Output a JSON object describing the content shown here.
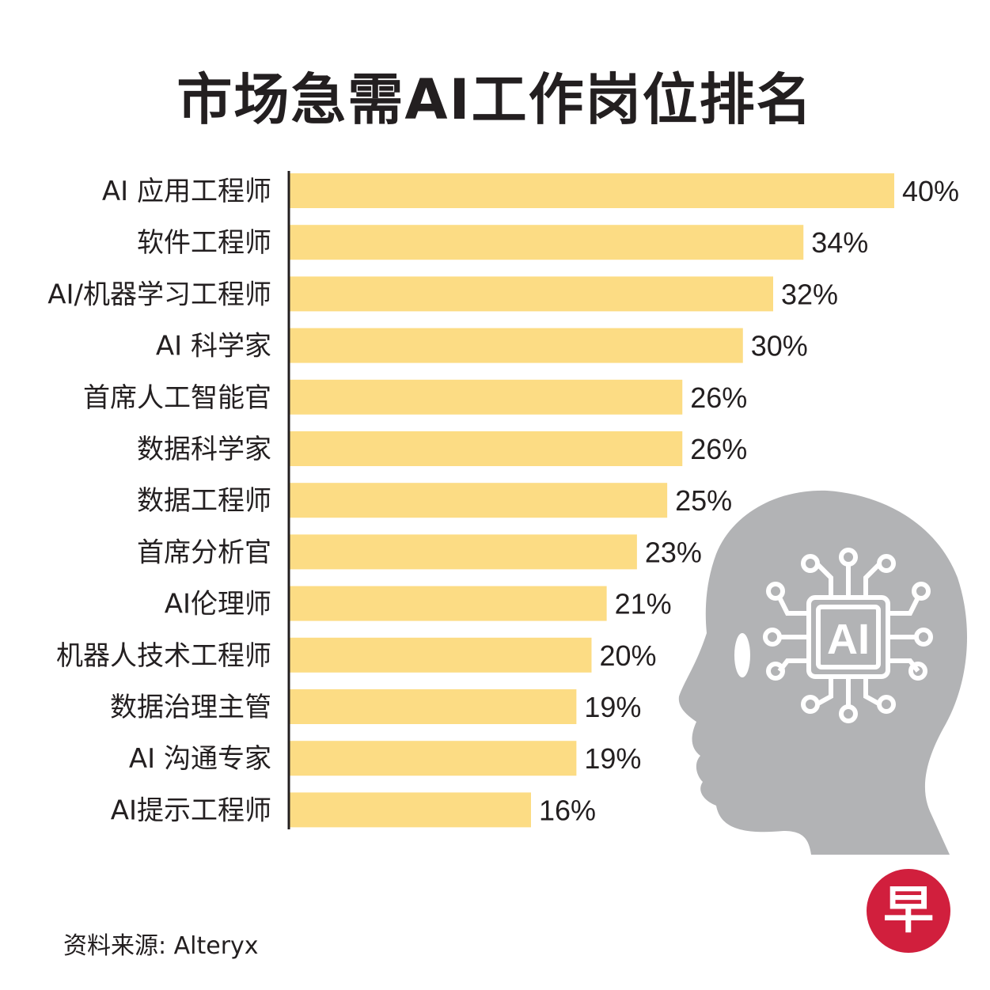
{
  "title": "市场急需AI工作岗位排名",
  "source": "资料来源: Alteryx",
  "logo_text": "早",
  "illustration_label": "AI",
  "colors": {
    "bar": "#fcdc84",
    "axis": "#231f20",
    "head": "#b2b3b5",
    "logo": "#d11f3d"
  },
  "chart_data": {
    "type": "bar",
    "orientation": "horizontal",
    "categories": [
      "AI 应用工程师",
      "软件工程师",
      "AI/机器学习工程师",
      "AI 科学家",
      "首席人工智能官",
      "数据科学家",
      "数据工程师",
      "首席分析官",
      "AI伦理师",
      "机器人技术工程师",
      "数据治理主管",
      "AI 沟通专家",
      "AI提示工程师"
    ],
    "values": [
      40,
      34,
      32,
      30,
      26,
      26,
      25,
      23,
      21,
      20,
      19,
      19,
      16
    ],
    "value_labels": [
      "40%",
      "34%",
      "32%",
      "30%",
      "26%",
      "26%",
      "25%",
      "23%",
      "21%",
      "20%",
      "19%",
      "19%",
      "16%"
    ],
    "unit": "%",
    "title": "市场急需AI工作岗位排名",
    "xlabel": "",
    "ylabel": "",
    "xlim": [
      0,
      40
    ],
    "grid": false,
    "legend": "none"
  }
}
